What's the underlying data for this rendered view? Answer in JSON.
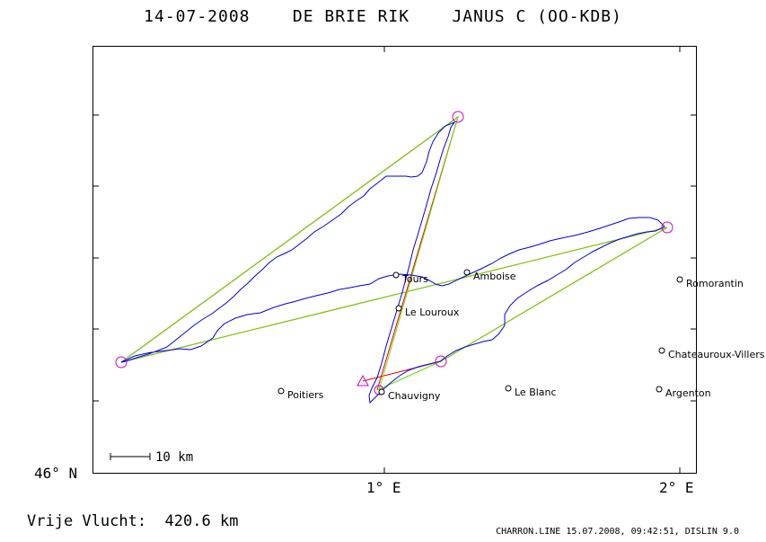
{
  "header": {
    "date": "14-07-2008",
    "pilot": "DE BRIE RIK",
    "glider": "JANUS C (OO-KDB)"
  },
  "axes": {
    "lat_label": "46° N",
    "lon_labels": [
      "1° E",
      "2° E"
    ]
  },
  "scale": {
    "label": "10 km"
  },
  "cities": [
    {
      "name": "Amboise",
      "lon": 1.28,
      "lat": 47.41
    },
    {
      "name": "Romorantin",
      "lon": 2.0,
      "lat": 47.36
    },
    {
      "name": "Tours",
      "lon": 1.04,
      "lat": 47.39
    },
    {
      "name": "Le Louroux",
      "lon": 1.05,
      "lat": 47.16
    },
    {
      "name": "Chateauroux-Villers",
      "lon": 1.94,
      "lat": 46.86
    },
    {
      "name": "Poitiers",
      "lon": 0.65,
      "lat": 46.58
    },
    {
      "name": "Chauvigny",
      "lon": 0.99,
      "lat": 46.57
    },
    {
      "name": "Le Blanc",
      "lon": 1.42,
      "lat": 46.6
    },
    {
      "name": "Argenton",
      "lon": 1.93,
      "lat": 46.59
    }
  ],
  "colors": {
    "track": "#0000dd",
    "task_a": "#ee0000",
    "task_b": "#66dd00",
    "task_c": "#b07000",
    "turnpoint": "#cc00cc"
  },
  "footer": {
    "distance_label": "Vrije Vlucht:",
    "distance_value": "420.6 km",
    "credit": "CHARRON.LINE 15.07.2008, 09:42:51, DISLIN 9.0"
  }
}
